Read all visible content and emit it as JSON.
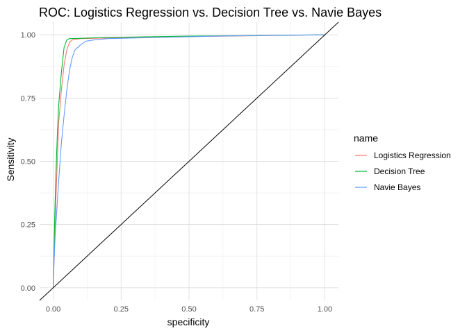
{
  "chart_data": {
    "type": "line",
    "title": "ROC: Logistics Regression vs. Decision Tree vs. Navie Bayes",
    "xlabel": "specificity",
    "ylabel": "Sensitivity",
    "xlim": [
      -0.05,
      1.05
    ],
    "ylim": [
      -0.05,
      1.05
    ],
    "x_ticks": [
      0.0,
      0.25,
      0.5,
      0.75,
      1.0
    ],
    "x_tick_labels": [
      "0.00",
      "0.25",
      "0.50",
      "0.75",
      "1.00"
    ],
    "y_ticks": [
      0.0,
      0.25,
      0.5,
      0.75,
      1.0
    ],
    "y_tick_labels": [
      "0.00",
      "0.25",
      "0.50",
      "0.75",
      "1.00"
    ],
    "grid": true,
    "legend": {
      "title": "name",
      "position": "right"
    },
    "series": [
      {
        "name": "Logistics Regression",
        "color": "#F8766D",
        "points": [
          [
            0,
            0
          ],
          [
            0.003,
            0.1
          ],
          [
            0.006,
            0.2
          ],
          [
            0.01,
            0.35
          ],
          [
            0.015,
            0.5
          ],
          [
            0.02,
            0.65
          ],
          [
            0.03,
            0.78
          ],
          [
            0.04,
            0.88
          ],
          [
            0.05,
            0.94
          ],
          [
            0.06,
            0.97
          ],
          [
            0.07,
            0.98
          ],
          [
            0.1,
            0.985
          ],
          [
            0.3,
            0.99
          ],
          [
            1,
            1
          ]
        ]
      },
      {
        "name": "Decision Tree",
        "color": "#00BA38",
        "points": [
          [
            0,
            0
          ],
          [
            0.003,
            0.15
          ],
          [
            0.006,
            0.3
          ],
          [
            0.01,
            0.45
          ],
          [
            0.015,
            0.6
          ],
          [
            0.02,
            0.72
          ],
          [
            0.03,
            0.85
          ],
          [
            0.04,
            0.95
          ],
          [
            0.05,
            0.98
          ],
          [
            0.06,
            0.985
          ],
          [
            0.2,
            0.99
          ],
          [
            0.5,
            0.995
          ],
          [
            1,
            1
          ]
        ]
      },
      {
        "name": "Navie Bayes",
        "color": "#619CFF",
        "points": [
          [
            0,
            0
          ],
          [
            0.003,
            0.1
          ],
          [
            0.007,
            0.2
          ],
          [
            0.01,
            0.25
          ],
          [
            0.02,
            0.42
          ],
          [
            0.03,
            0.57
          ],
          [
            0.04,
            0.68
          ],
          [
            0.05,
            0.78
          ],
          [
            0.06,
            0.86
          ],
          [
            0.07,
            0.91
          ],
          [
            0.08,
            0.94
          ],
          [
            0.1,
            0.96
          ],
          [
            0.12,
            0.975
          ],
          [
            0.15,
            0.98
          ],
          [
            0.2,
            0.985
          ],
          [
            0.4,
            0.99
          ],
          [
            0.6,
            0.995
          ],
          [
            0.8,
            0.998
          ],
          [
            1,
            1
          ]
        ]
      }
    ],
    "reference_line": {
      "color": "#000000",
      "points": [
        [
          -0.05,
          -0.05
        ],
        [
          1.05,
          1.05
        ]
      ]
    }
  }
}
